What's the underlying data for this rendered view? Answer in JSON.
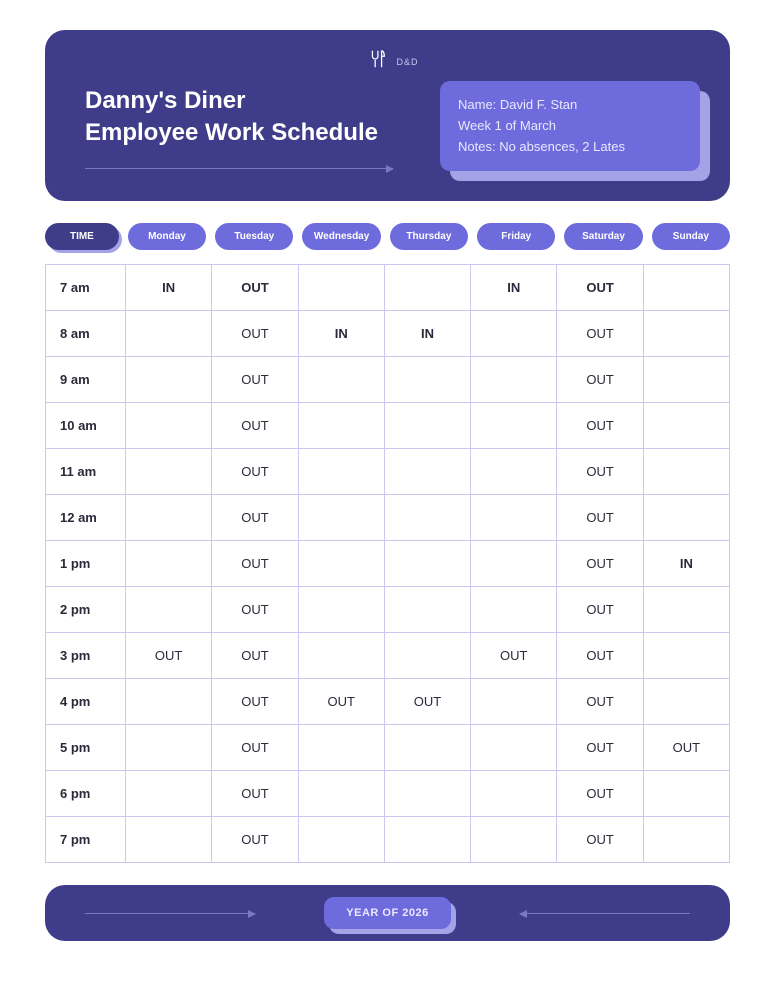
{
  "brand": {
    "tag": "D&D"
  },
  "header": {
    "title_line1": "Danny's Diner",
    "title_line2": "Employee Work Schedule",
    "info": {
      "name_label": "Name:",
      "name_value": "David F. Stan",
      "week": "Week 1 of March",
      "notes_label": "Notes:",
      "notes_value": "No absences, 2 Lates"
    }
  },
  "colors": {
    "header_bg": "#3f3d8a",
    "accent": "#6e6cdd",
    "accent_light": "#a5a3e8",
    "grid_border": "#c9c8ef",
    "in_text": "#5f5dd6",
    "out_text": "#2a2a3a",
    "page_bg": "#ffffff"
  },
  "pills": {
    "time_label": "TIME",
    "days": [
      "Monday",
      "Tuesday",
      "Wednesday",
      "Thursday",
      "Friday",
      "Saturday",
      "Sunday"
    ]
  },
  "schedule": {
    "times": [
      "7 am",
      "8 am",
      "9 am",
      "10 am",
      "11 am",
      "12 am",
      "1 pm",
      "2 pm",
      "3 pm",
      "4 pm",
      "5 pm",
      "6 pm",
      "7 pm"
    ],
    "columns": [
      "Monday",
      "Tuesday",
      "Wednesday",
      "Thursday",
      "Friday",
      "Saturday",
      "Sunday"
    ],
    "cells": [
      [
        "IN",
        "OUT",
        "",
        "",
        "IN",
        "OUT",
        ""
      ],
      [
        "",
        "OUT",
        "IN",
        "IN",
        "",
        "OUT",
        ""
      ],
      [
        "",
        "OUT",
        "",
        "",
        "",
        "OUT",
        ""
      ],
      [
        "",
        "OUT",
        "",
        "",
        "",
        "OUT",
        ""
      ],
      [
        "",
        "OUT",
        "",
        "",
        "",
        "OUT",
        ""
      ],
      [
        "",
        "OUT",
        "",
        "",
        "",
        "OUT",
        ""
      ],
      [
        "",
        "OUT",
        "",
        "",
        "",
        "OUT",
        "IN"
      ],
      [
        "",
        "OUT",
        "",
        "",
        "",
        "OUT",
        ""
      ],
      [
        "OUT",
        "OUT",
        "",
        "",
        "OUT",
        "OUT",
        ""
      ],
      [
        "",
        "OUT",
        "OUT",
        "OUT",
        "",
        "OUT",
        ""
      ],
      [
        "",
        "OUT",
        "",
        "",
        "",
        "OUT",
        "OUT"
      ],
      [
        "",
        "OUT",
        "",
        "",
        "",
        "OUT",
        ""
      ],
      [
        "",
        "OUT",
        "",
        "",
        "",
        "OUT",
        ""
      ]
    ]
  },
  "footer": {
    "year_label": "YEAR OF 2026"
  }
}
